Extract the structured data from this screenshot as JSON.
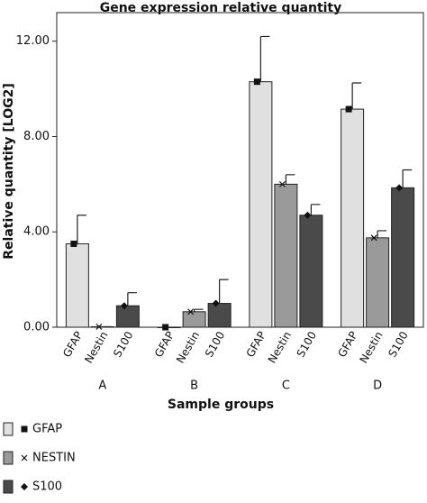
{
  "chart_data": {
    "type": "bar",
    "title": "Gene expression relative quantity",
    "x_label": "Sample groups",
    "y_label": "Relative quantity [LOG2]",
    "categories": [
      "A",
      "B",
      "C",
      "D"
    ],
    "bar_labels": [
      "GFAP",
      "Nestin",
      "S100"
    ],
    "series": [
      {
        "name": "GFAP",
        "color": "#e0e0e0",
        "marker": "square",
        "values": [
          3.5,
          0.0,
          10.3,
          9.15
        ],
        "errors": [
          1.2,
          0.0,
          1.9,
          1.1
        ]
      },
      {
        "name": "NESTIN",
        "color": "#9a9a9a",
        "marker": "x",
        "values": [
          0.02,
          0.65,
          6.0,
          3.75
        ],
        "errors": [
          0.0,
          0.1,
          0.4,
          0.3
        ]
      },
      {
        "name": "S100",
        "color": "#4a4a4a",
        "marker": "diamond",
        "values": [
          0.9,
          1.0,
          4.7,
          5.85
        ],
        "errors": [
          0.55,
          1.0,
          0.45,
          0.75
        ]
      }
    ],
    "ylim": [
      0,
      13.2
    ],
    "yticks": [
      {
        "value": 0,
        "label": "0.00"
      },
      {
        "value": 4,
        "label": "4.00"
      },
      {
        "value": 8,
        "label": "8.00"
      },
      {
        "value": 12,
        "label": "12.00"
      }
    ],
    "grid": false,
    "legend": "bottom-left"
  }
}
